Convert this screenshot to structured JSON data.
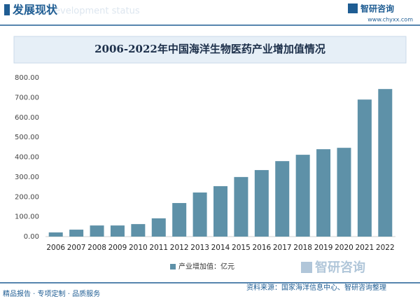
{
  "header": {
    "title": "发展现状",
    "subtitle": "Development status",
    "logo": "智研咨询",
    "url": "www.chyxx.com"
  },
  "chart_data": {
    "type": "bar",
    "title": "2006-2022年中国海洋生物医药产业增加值情况",
    "categories": [
      "2006",
      "2007",
      "2008",
      "2009",
      "2010",
      "2011",
      "2012",
      "2013",
      "2014",
      "2015",
      "2016",
      "2017",
      "2018",
      "2019",
      "2020",
      "2021",
      "2022"
    ],
    "series": [
      {
        "name": "产业增加值：亿元",
        "color": "#5e91a8",
        "values": [
          21,
          35,
          56,
          56,
          63,
          92,
          169,
          222,
          254,
          300,
          335,
          380,
          412,
          440,
          447,
          690,
          743
        ]
      }
    ],
    "ylim": [
      0,
      800
    ],
    "yticks": [
      {
        "value": 0,
        "label": "0.00"
      },
      {
        "value": 100,
        "label": "100.00"
      },
      {
        "value": 200,
        "label": "200.00"
      },
      {
        "value": 300,
        "label": "300.00"
      },
      {
        "value": 400,
        "label": "400.00"
      },
      {
        "value": 500,
        "label": "500.00"
      },
      {
        "value": 600,
        "label": "600.00"
      },
      {
        "value": 700,
        "label": "700.00"
      },
      {
        "value": 800,
        "label": "800.00"
      }
    ],
    "grid": false
  },
  "footer": {
    "left": "精品报告 · 专项定制 · 品质服务",
    "source": "资料来源：国家海洋信息中心、智研咨询整理",
    "logo": "智研咨询"
  }
}
